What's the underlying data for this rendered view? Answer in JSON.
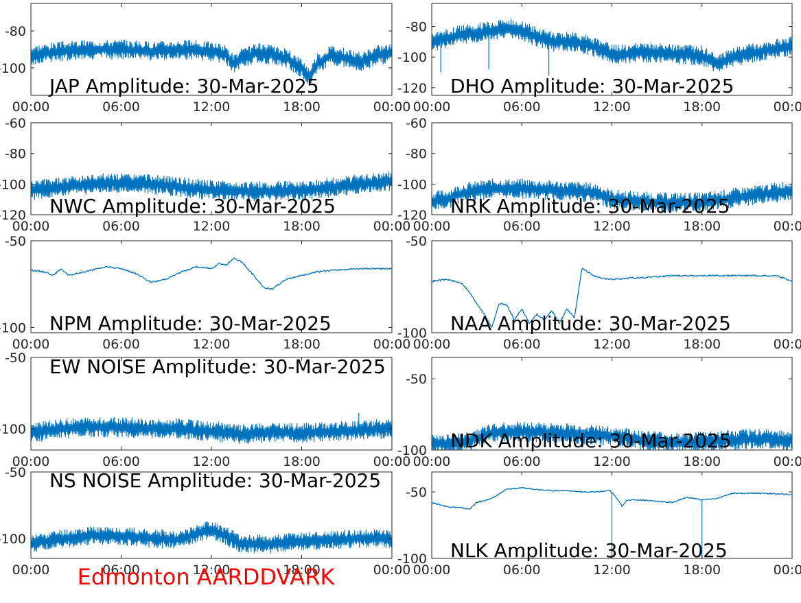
{
  "footer": {
    "text": "Edmonton AARDDVARK",
    "color": "#ff0000"
  },
  "line_color": "#0072bd",
  "chart_data": [
    {
      "type": "line",
      "title": "JAP Amplitude: 30-Mar-2025",
      "x_ticks": [
        "00:00",
        "06:00",
        "12:00",
        "18:00",
        "00:00"
      ],
      "xlim": [
        0,
        24
      ],
      "y_ticks": [
        "-80",
        "-100"
      ],
      "y_tick_values": [
        -80,
        -100
      ],
      "ylim": [
        -115,
        -65
      ],
      "noise": true,
      "spikes": [],
      "series": [
        {
          "x": [
            0,
            1,
            2,
            4,
            6,
            8,
            10,
            12,
            13,
            13.5,
            14,
            15,
            16,
            17,
            18,
            18.5,
            19,
            20,
            21,
            22,
            23,
            24
          ],
          "y": [
            -93,
            -92,
            -91,
            -90,
            -90,
            -91,
            -90,
            -91,
            -93,
            -98,
            -95,
            -92,
            -93,
            -95,
            -100,
            -105,
            -98,
            -93,
            -95,
            -97,
            -93,
            -92
          ]
        }
      ]
    },
    {
      "type": "line",
      "title": "DHO Amplitude: 30-Mar-2025",
      "x_ticks": [
        "00:00",
        "06:00",
        "12:00",
        "18:00",
        "00:00"
      ],
      "xlim": [
        0,
        24
      ],
      "y_ticks": [
        "-80",
        "-100",
        "-120"
      ],
      "y_tick_values": [
        -80,
        -100,
        -120
      ],
      "ylim": [
        -125,
        -65
      ],
      "noise": true,
      "spikes": [
        [
          0.6,
          -110
        ],
        [
          3.8,
          -108
        ],
        [
          7.8,
          -112
        ]
      ],
      "series": [
        {
          "x": [
            0,
            1,
            2,
            3,
            4,
            5,
            6,
            7,
            8,
            9,
            10,
            11,
            12,
            13,
            14,
            16,
            18,
            19,
            20,
            22,
            24
          ],
          "y": [
            -90,
            -88,
            -85,
            -84,
            -83,
            -81,
            -83,
            -87,
            -90,
            -90,
            -91,
            -94,
            -98,
            -98,
            -97,
            -98,
            -99,
            -105,
            -100,
            -96,
            -93
          ]
        }
      ]
    },
    {
      "type": "line",
      "title": "NWC Amplitude: 30-Mar-2025",
      "x_ticks": [
        "00:00",
        "06:00",
        "12:00",
        "18:00",
        "00:00"
      ],
      "xlim": [
        0,
        24
      ],
      "y_ticks": [
        "-60",
        "-80",
        "-100",
        "-120"
      ],
      "y_tick_values": [
        -60,
        -80,
        -100,
        -120
      ],
      "ylim": [
        -120,
        -60
      ],
      "noise": true,
      "spikes": [],
      "series": [
        {
          "x": [
            0,
            3,
            5,
            8,
            12,
            15,
            18,
            21,
            24
          ],
          "y": [
            -104,
            -101,
            -99,
            -100,
            -104,
            -105,
            -104,
            -101,
            -98
          ]
        }
      ]
    },
    {
      "type": "line",
      "title": "NRK Amplitude: 30-Mar-2025",
      "x_ticks": [
        "00:00",
        "06:00",
        "12:00",
        "18:00",
        "00:00"
      ],
      "xlim": [
        0,
        24
      ],
      "y_ticks": [
        "-60",
        "-80",
        "-100",
        "-120"
      ],
      "y_tick_values": [
        -60,
        -80,
        -100,
        -120
      ],
      "ylim": [
        -120,
        -60
      ],
      "noise": true,
      "spikes": [],
      "series": [
        {
          "x": [
            0,
            1,
            2,
            4,
            6,
            8,
            10,
            11,
            12,
            15,
            18,
            21,
            24
          ],
          "y": [
            -111,
            -110,
            -106,
            -103,
            -103,
            -104,
            -105,
            -106,
            -110,
            -112,
            -112,
            -108,
            -104
          ]
        }
      ]
    },
    {
      "type": "line",
      "title": "NPM Amplitude: 30-Mar-2025",
      "x_ticks": [
        "00:00",
        "06:00",
        "12:00",
        "18:00",
        "00:00"
      ],
      "xlim": [
        0,
        24
      ],
      "y_ticks": [
        "-50",
        "-100"
      ],
      "y_tick_values": [
        -50,
        -100
      ],
      "ylim": [
        -103,
        -50
      ],
      "noise": false,
      "spikes": [],
      "series": [
        {
          "x": [
            0,
            1,
            1.5,
            2,
            2.5,
            3,
            4,
            5,
            6,
            7,
            8,
            9,
            10,
            11,
            12,
            12.5,
            13,
            13.5,
            14,
            15,
            15.5,
            16,
            17,
            18,
            19,
            20,
            22,
            24
          ],
          "y": [
            -67,
            -68,
            -70,
            -66,
            -70,
            -69,
            -67,
            -65,
            -66,
            -69,
            -74,
            -72,
            -68,
            -65,
            -66,
            -63,
            -64,
            -60,
            -62,
            -72,
            -77,
            -78,
            -72,
            -70,
            -68,
            -67,
            -66,
            -66
          ]
        }
      ]
    },
    {
      "type": "line",
      "title": "NAA Amplitude: 30-Mar-2025",
      "x_ticks": [
        "00:00",
        "06:00",
        "12:00",
        "18:00",
        "00:00"
      ],
      "xlim": [
        0,
        24
      ],
      "y_ticks": [
        "-50",
        "-100"
      ],
      "y_tick_values": [
        -50,
        -100
      ],
      "ylim": [
        -100,
        -50
      ],
      "noise": false,
      "spikes": [],
      "series": [
        {
          "x": [
            0,
            1,
            2,
            2.5,
            3,
            3.5,
            4,
            4.5,
            5,
            5.5,
            6,
            6.5,
            7,
            7.5,
            8,
            8.5,
            9,
            9.5,
            10,
            11,
            12,
            14,
            16,
            18,
            20,
            22,
            23,
            24
          ],
          "y": [
            -72,
            -71,
            -73,
            -78,
            -84,
            -90,
            -97,
            -84,
            -85,
            -93,
            -87,
            -95,
            -90,
            -93,
            -88,
            -95,
            -87,
            -92,
            -65,
            -70,
            -71,
            -70,
            -69,
            -69,
            -69,
            -69,
            -69,
            -72
          ]
        }
      ]
    },
    {
      "type": "line",
      "title": "EW NOISE Amplitude: 30-Mar-2025",
      "x_ticks": [
        "00:00",
        "06:00",
        "12:00",
        "18:00",
        "00:00"
      ],
      "xlim": [
        0,
        24
      ],
      "y_ticks": [
        "-50",
        "-100"
      ],
      "y_tick_values": [
        -50,
        -100
      ],
      "ylim": [
        -115,
        -50
      ],
      "noise": true,
      "spikes": [
        [
          21.8,
          -89
        ]
      ],
      "series": [
        {
          "x": [
            0,
            2,
            4,
            6,
            8,
            10,
            12,
            14,
            16,
            18,
            20,
            22,
            24
          ],
          "y": [
            -103,
            -100,
            -99,
            -99,
            -100,
            -100,
            -102,
            -104,
            -103,
            -103,
            -102,
            -101,
            -100
          ]
        }
      ]
    },
    {
      "type": "line",
      "title": "NDK Amplitude: 30-Mar-2025",
      "x_ticks": [
        "00:00",
        "06:00",
        "12:00",
        "18:00",
        "00:00"
      ],
      "xlim": [
        0,
        24
      ],
      "y_ticks": [
        "-50",
        "-100"
      ],
      "y_tick_values": [
        -50,
        -100
      ],
      "ylim": [
        -100,
        -35
      ],
      "noise": true,
      "spikes": [],
      "series": [
        {
          "x": [
            0,
            2,
            3,
            4,
            6,
            8,
            10,
            12,
            14,
            16,
            18,
            20,
            22,
            24
          ],
          "y": [
            -96,
            -95,
            -92,
            -88,
            -87,
            -88,
            -89,
            -90,
            -93,
            -95,
            -94,
            -93,
            -92,
            -93
          ]
        }
      ]
    },
    {
      "type": "line",
      "title": "NS NOISE Amplitude: 30-Mar-2025",
      "x_ticks": [
        "00:00",
        "06:00",
        "12:00",
        "18:00",
        "00:00"
      ],
      "xlim": [
        0,
        24
      ],
      "y_ticks": [
        "-50",
        "-100"
      ],
      "y_tick_values": [
        -50,
        -100
      ],
      "ylim": [
        -115,
        -50
      ],
      "noise": true,
      "spikes": [],
      "series": [
        {
          "x": [
            0,
            2,
            4,
            6,
            8,
            10,
            11,
            12,
            14,
            16,
            18,
            20,
            22,
            24
          ],
          "y": [
            -104,
            -100,
            -98,
            -98,
            -100,
            -101,
            -96,
            -93,
            -104,
            -104,
            -102,
            -101,
            -100,
            -100
          ]
        }
      ]
    },
    {
      "type": "line",
      "title": "NLK Amplitude: 30-Mar-2025",
      "x_ticks": [
        "00:00",
        "06:00",
        "12:00",
        "18:00",
        "00:00"
      ],
      "xlim": [
        0,
        24
      ],
      "y_ticks": [
        "-50",
        "-100"
      ],
      "y_tick_values": [
        -50,
        -100
      ],
      "ylim": [
        -100,
        -35
      ],
      "noise": false,
      "spikes": [
        [
          12,
          -100
        ],
        [
          18,
          -100
        ]
      ],
      "series": [
        {
          "x": [
            0,
            1,
            2,
            2.5,
            3,
            4,
            5,
            6,
            7,
            8,
            9,
            10,
            11,
            11.9,
            12.2,
            12.7,
            13,
            14,
            15,
            16,
            17,
            18,
            19,
            20,
            22,
            24
          ],
          "y": [
            -58,
            -61,
            -62,
            -63,
            -58,
            -55,
            -48,
            -47,
            -48,
            -49,
            -49,
            -50,
            -50,
            -49,
            -53,
            -61,
            -56,
            -56,
            -57,
            -58,
            -54,
            -56,
            -55,
            -51,
            -51,
            -52
          ]
        }
      ]
    }
  ]
}
